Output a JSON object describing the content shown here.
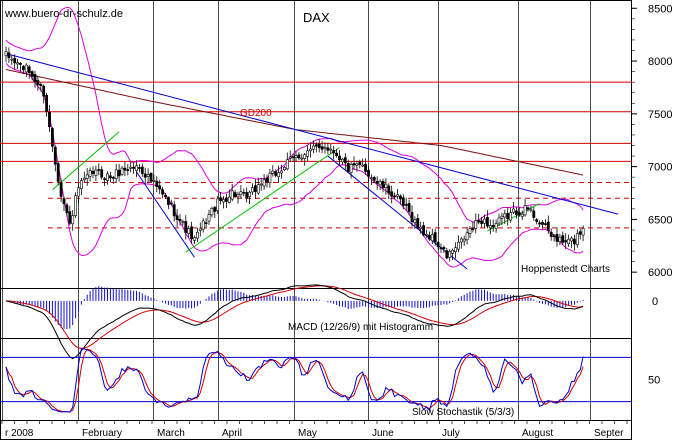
{
  "site_label": "www.buero-dr-schulz.de",
  "title": "DAX",
  "source_label": "Hoppenstedt Charts",
  "gd200_label": "GD200",
  "macd_label": "MACD (12/26/9) mit Histogramm",
  "stoch_label": "Slow Stochastik (5/3/3)",
  "colors": {
    "background": "#ffffff",
    "grid": "#000000",
    "candle": "#000000",
    "bollinger": "#e000e0",
    "gd200": "#7a1010",
    "resistance": "#d40000",
    "downtrend": "#0000d0",
    "uptrend": "#00c000",
    "macd_line": "#000000",
    "signal_line": "#d40000",
    "histogram": "#1010d0",
    "stoch_k": "#0000d0",
    "stoch_d": "#d40000",
    "stoch_bounds": "#0000d0"
  },
  "chart_data": [
    {
      "type": "candlestick",
      "panel": "price",
      "title": "DAX",
      "x_ticks": [
        "r 2008",
        "February",
        "March",
        "April",
        "May",
        "June",
        "July",
        "August",
        "Septer"
      ],
      "y_ticks": [
        8500,
        8000,
        7500,
        7000,
        6500,
        6000
      ],
      "y_range": [
        5850,
        8550
      ],
      "start_value": 8050,
      "close_path": [
        {
          "t": 0,
          "v": 8050
        },
        {
          "t": 8,
          "v": 7900
        },
        {
          "t": 13,
          "v": 7700
        },
        {
          "t": 16,
          "v": 7200
        },
        {
          "t": 19,
          "v": 6750
        },
        {
          "t": 22,
          "v": 6450
        },
        {
          "t": 25,
          "v": 6800
        },
        {
          "t": 30,
          "v": 6950
        },
        {
          "t": 36,
          "v": 6900
        },
        {
          "t": 41,
          "v": 6980
        },
        {
          "t": 46,
          "v": 7000
        },
        {
          "t": 52,
          "v": 6800
        },
        {
          "t": 57,
          "v": 6620
        },
        {
          "t": 61,
          "v": 6450
        },
        {
          "t": 65,
          "v": 6300
        },
        {
          "t": 69,
          "v": 6500
        },
        {
          "t": 73,
          "v": 6650
        },
        {
          "t": 78,
          "v": 6750
        },
        {
          "t": 83,
          "v": 6700
        },
        {
          "t": 88,
          "v": 6850
        },
        {
          "t": 93,
          "v": 6930
        },
        {
          "t": 99,
          "v": 7080
        },
        {
          "t": 105,
          "v": 7150
        },
        {
          "t": 110,
          "v": 7200
        },
        {
          "t": 114,
          "v": 7130
        },
        {
          "t": 118,
          "v": 6980
        },
        {
          "t": 123,
          "v": 7000
        },
        {
          "t": 128,
          "v": 6850
        },
        {
          "t": 133,
          "v": 6750
        },
        {
          "t": 138,
          "v": 6600
        },
        {
          "t": 143,
          "v": 6400
        },
        {
          "t": 148,
          "v": 6300
        },
        {
          "t": 152,
          "v": 6150
        },
        {
          "t": 156,
          "v": 6250
        },
        {
          "t": 160,
          "v": 6400
        },
        {
          "t": 164,
          "v": 6500
        },
        {
          "t": 168,
          "v": 6430
        },
        {
          "t": 172,
          "v": 6520
        },
        {
          "t": 176,
          "v": 6580
        },
        {
          "t": 180,
          "v": 6600
        },
        {
          "t": 184,
          "v": 6480
        },
        {
          "t": 188,
          "v": 6350
        },
        {
          "t": 192,
          "v": 6280
        },
        {
          "t": 196,
          "v": 6300
        },
        {
          "t": 199,
          "v": 6430
        }
      ],
      "resistance_levels": [
        7800,
        7520,
        7220,
        7050
      ],
      "dashed_levels": [
        6850,
        6700,
        6420
      ],
      "gd200_path": [
        {
          "t": 0,
          "v": 7920
        },
        {
          "t": 50,
          "v": 7620
        },
        {
          "t": 100,
          "v": 7350
        },
        {
          "t": 150,
          "v": 7200
        },
        {
          "t": 199,
          "v": 6920
        }
      ],
      "downtrend_lines": [
        {
          "from": {
            "t": 0,
            "v": 8070
          },
          "to": {
            "t": 211,
            "v": 6550
          }
        },
        {
          "from": {
            "t": 45,
            "v": 6950
          },
          "to": {
            "t": 65,
            "v": 6140
          }
        },
        {
          "from": {
            "t": 111,
            "v": 7100
          },
          "to": {
            "t": 159,
            "v": 6030
          }
        }
      ],
      "uptrend_lines": [
        {
          "from": {
            "t": 16,
            "v": 6780
          },
          "to": {
            "t": 39,
            "v": 7330
          }
        },
        {
          "from": {
            "t": 62,
            "v": 6190
          },
          "to": {
            "t": 115,
            "v": 7180
          }
        },
        {
          "from": {
            "t": 166,
            "v": 6390
          },
          "to": {
            "t": 184,
            "v": 6650
          }
        }
      ]
    },
    {
      "type": "line",
      "panel": "macd",
      "title": "MACD (12/26/9) mit Histogramm",
      "y_ticks": [
        0
      ],
      "y_range": [
        -250,
        80
      ]
    },
    {
      "type": "line",
      "panel": "stochastic",
      "title": "Slow Stochastik (5/3/3)",
      "y_ticks": [
        50
      ],
      "y_range": [
        -5,
        105
      ],
      "bounds": [
        80,
        20
      ]
    }
  ]
}
